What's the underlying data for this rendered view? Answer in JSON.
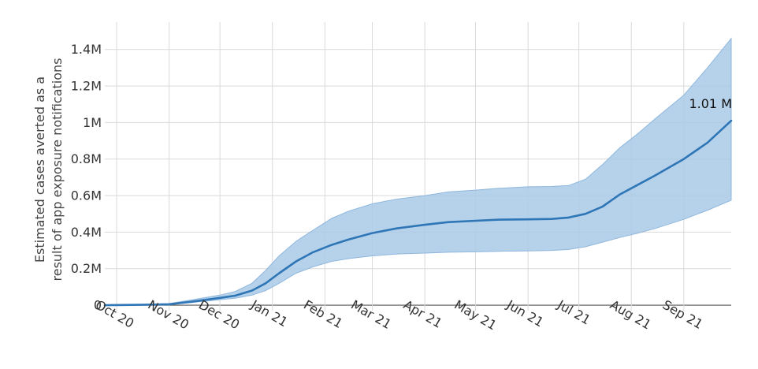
{
  "chart_data": {
    "type": "area",
    "title": "",
    "ylabel_line1": "Estimated cases averted as a",
    "ylabel_line2": "result of app exposure notifications",
    "xlabel": "",
    "x_tick_labels": [
      "Oct 20",
      "Nov 20",
      "Dec 20",
      "Jan 21",
      "Feb 21",
      "Mar 21",
      "Apr 21",
      "May 21",
      "Jun 21",
      "Jul 21",
      "Aug 21",
      "Sep 21"
    ],
    "x_tick_dates": [
      "2020-10-01",
      "2020-11-01",
      "2020-12-01",
      "2021-01-01",
      "2021-02-01",
      "2021-03-01",
      "2021-04-01",
      "2021-05-01",
      "2021-06-01",
      "2021-07-01",
      "2021-08-01",
      "2021-09-01"
    ],
    "xlim": [
      "2020-09-24",
      "2021-09-29"
    ],
    "y_ticks": [
      0,
      200000,
      400000,
      600000,
      800000,
      1000000,
      1200000,
      1400000
    ],
    "y_tick_labels": [
      "0",
      "0.2M",
      "0.4M",
      "0.6M",
      "0.8M",
      "1M",
      "1.2M",
      "1.4M"
    ],
    "ylim": [
      -30000,
      1550000
    ],
    "grid": true,
    "series": [
      {
        "x": [
          "2020-09-24",
          "2020-10-15",
          "2020-11-01",
          "2020-11-15",
          "2020-12-01",
          "2020-12-10",
          "2020-12-20",
          "2020-12-28",
          "2021-01-05",
          "2021-01-15",
          "2021-01-25",
          "2021-02-05",
          "2021-02-15",
          "2021-03-01",
          "2021-03-15",
          "2021-04-01",
          "2021-04-15",
          "2021-05-01",
          "2021-05-15",
          "2021-06-01",
          "2021-06-15",
          "2021-06-25",
          "2021-07-05",
          "2021-07-15",
          "2021-07-25",
          "2021-08-05",
          "2021-08-15",
          "2021-09-01",
          "2021-09-15",
          "2021-09-29"
        ],
        "values": [
          0,
          2000,
          5000,
          20000,
          40000,
          52000,
          80000,
          120000,
          175000,
          240000,
          290000,
          330000,
          360000,
          395000,
          420000,
          440000,
          455000,
          462000,
          468000,
          470000,
          472000,
          480000,
          500000,
          540000,
          605000,
          660000,
          710000,
          800000,
          890000,
          1010000
        ],
        "lower": [
          0,
          1000,
          3000,
          15000,
          30000,
          38000,
          55000,
          80000,
          120000,
          175000,
          210000,
          240000,
          255000,
          270000,
          280000,
          285000,
          290000,
          292000,
          295000,
          297000,
          300000,
          305000,
          320000,
          345000,
          370000,
          395000,
          420000,
          470000,
          520000,
          575000
        ],
        "upper": [
          0,
          3000,
          9000,
          30000,
          55000,
          75000,
          120000,
          190000,
          270000,
          350000,
          410000,
          475000,
          515000,
          555000,
          580000,
          600000,
          620000,
          630000,
          640000,
          648000,
          650000,
          655000,
          690000,
          770000,
          860000,
          940000,
          1020000,
          1150000,
          1300000,
          1460000
        ]
      }
    ],
    "annotation": "1.01 M",
    "colors": {
      "line": "#2e76b6",
      "band": "#a9c9e6",
      "band_edge": "#8fb7dd",
      "grid": "#d9d9d9",
      "zero_line": "#555555"
    }
  }
}
